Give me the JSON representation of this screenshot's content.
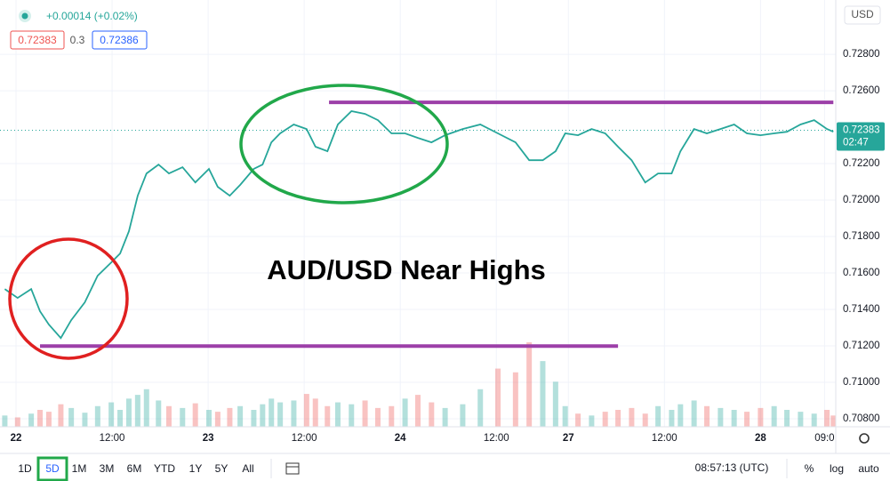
{
  "header": {
    "change": "+0.00014 (+0.02%)",
    "bid": "0.72383",
    "spread": "0.3",
    "ask": "0.72386",
    "currency": "USD"
  },
  "chart_data": {
    "type": "line",
    "annotation": "AUD/USD Near Highs",
    "color": "#26a69a",
    "x": [
      -1.4,
      0.2,
      1.9,
      3,
      4.1,
      5.6,
      6.9,
      8.6,
      10.2,
      11.9,
      13,
      14.1,
      15.2,
      16.3,
      17.8,
      19.1,
      20.8,
      22.4,
      24.1,
      25.2,
      26.7,
      28,
      29.7,
      30.8,
      31.9,
      33,
      34.7,
      36.3,
      37.4,
      38.9,
      40.2,
      41.9,
      43.6,
      45.2,
      46.9,
      48.6,
      50.2,
      51.9,
      53.6,
      55.8,
      58,
      60.2,
      62.4,
      64.1,
      65.8,
      67.4,
      68.6,
      70.2,
      71.9,
      73.6,
      75.2,
      76.9,
      78.6,
      80.2,
      81.9,
      83,
      84.7,
      86.3,
      88,
      89.7,
      91.3,
      93,
      94.7,
      96.3,
      98,
      99.7,
      101.3,
      102.1
    ],
    "values": [
      0.71512,
      0.71463,
      0.71512,
      0.7139,
      0.71317,
      0.71243,
      0.71341,
      0.71439,
      0.71585,
      0.71658,
      0.71707,
      0.71829,
      0.72024,
      0.72146,
      0.72195,
      0.72146,
      0.7218,
      0.72097,
      0.72171,
      0.72073,
      0.72024,
      0.72083,
      0.72171,
      0.72195,
      0.72317,
      0.72366,
      0.72415,
      0.7239,
      0.72293,
      0.72268,
      0.72415,
      0.72488,
      0.72473,
      0.72439,
      0.72366,
      0.72366,
      0.72341,
      0.72317,
      0.72356,
      0.7239,
      0.72415,
      0.72366,
      0.72317,
      0.72219,
      0.72219,
      0.72268,
      0.72366,
      0.72356,
      0.7239,
      0.72366,
      0.72293,
      0.72219,
      0.72097,
      0.72146,
      0.72146,
      0.72268,
      0.7239,
      0.72366,
      0.7239,
      0.72415,
      0.72366,
      0.72356,
      0.72366,
      0.72375,
      0.72415,
      0.72439,
      0.7239,
      0.72375
    ],
    "volume": [
      12,
      10,
      14,
      18,
      16,
      24,
      20,
      15,
      22,
      26,
      18,
      30,
      34,
      40,
      28,
      22,
      20,
      25,
      18,
      16,
      20,
      22,
      18,
      24,
      30,
      26,
      28,
      35,
      30,
      22,
      26,
      24,
      28,
      20,
      22,
      30,
      34,
      26,
      20,
      24,
      40,
      62,
      58,
      90,
      70,
      48,
      22,
      14,
      12,
      16,
      18,
      20,
      14,
      22,
      18,
      24,
      28,
      22,
      20,
      18,
      16,
      20,
      22,
      18,
      16,
      14,
      18,
      12
    ],
    "up_color": "#26a69a",
    "down_color": "#ef5350",
    "levels": [
      {
        "y": 0.72536,
        "x": [
          39.1,
          102.1
        ]
      },
      {
        "y": 0.71199,
        "x": [
          3,
          75.2
        ]
      }
    ],
    "level_color": "#9c3fa8",
    "last_price": {
      "value": 0.72383,
      "label": "0.72383"
    },
    "countdown": "02:47",
    "xlim": [
      -2,
      102.4
    ],
    "ylim": [
      0.70756,
      0.73098
    ],
    "xticks": [
      {
        "value": 0,
        "label": "22"
      },
      {
        "value": 12,
        "label": "12:00"
      },
      {
        "value": 24,
        "label": "23"
      },
      {
        "value": 36,
        "label": "12:00"
      },
      {
        "value": 48,
        "label": "24"
      },
      {
        "value": 60,
        "label": "12:00"
      },
      {
        "value": 69,
        "label": "27"
      },
      {
        "value": 81,
        "label": "12:00"
      },
      {
        "value": 93,
        "label": "28"
      },
      {
        "value": 101,
        "label": "09:0"
      }
    ],
    "yticks": [
      {
        "value": 0.708,
        "label": "0.70800"
      },
      {
        "value": 0.71,
        "label": "0.71000"
      },
      {
        "value": 0.712,
        "label": "0.71200"
      },
      {
        "value": 0.714,
        "label": "0.71400"
      },
      {
        "value": 0.716,
        "label": "0.71600"
      },
      {
        "value": 0.718,
        "label": "0.71800"
      },
      {
        "value": 0.72,
        "label": "0.72000"
      },
      {
        "value": 0.722,
        "label": "0.72200"
      },
      {
        "value": 0.726,
        "label": "0.72600"
      },
      {
        "value": 0.728,
        "label": "0.72800"
      }
    ],
    "grid": true
  },
  "toolbar": {
    "ranges": [
      "1D",
      "5D",
      "1M",
      "3M",
      "6M",
      "YTD",
      "1Y",
      "5Y",
      "All"
    ],
    "active": 1,
    "clock": "08:57:13 (UTC)",
    "options": [
      "%",
      "log",
      "auto"
    ]
  }
}
